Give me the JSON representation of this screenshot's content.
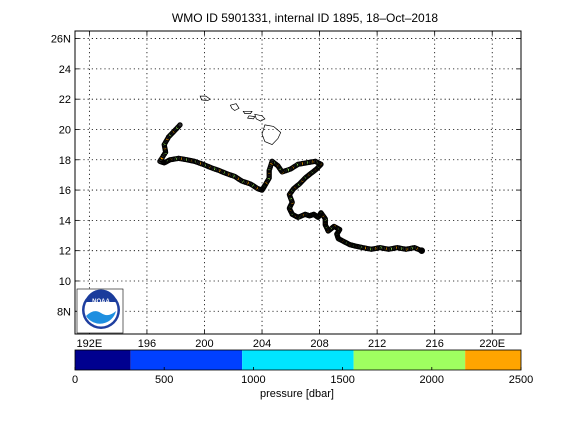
{
  "title": "WMO ID 5901331, internal ID 1895, 18–Oct–2018",
  "map": {
    "lon_range": [
      191,
      222
    ],
    "lat_range": [
      6.5,
      26.5
    ],
    "lon_ticks": [
      192,
      196,
      200,
      204,
      208,
      212,
      216,
      220
    ],
    "lon_tick_labels": [
      "192E",
      "196",
      "200",
      "204",
      "208",
      "212",
      "216",
      "220E"
    ],
    "lat_ticks": [
      8,
      10,
      12,
      14,
      16,
      18,
      20,
      22,
      24,
      26
    ],
    "lat_tick_labels": [
      "8N",
      "10",
      "12",
      "14",
      "16",
      "18",
      "20",
      "22",
      "24",
      "26N"
    ],
    "grid": "dotted",
    "logo_text": "NOAA"
  },
  "colorbar": {
    "label": "pressure [dbar]",
    "ticks": [
      "0",
      "500",
      "1000",
      "1500",
      "2000",
      "2500"
    ],
    "range": [
      0,
      2500
    ],
    "bins": [
      {
        "from": 0,
        "to": 312,
        "color": "#00008f"
      },
      {
        "from": 312,
        "to": 937,
        "color": "#0040ff"
      },
      {
        "from": 937,
        "to": 1562,
        "color": "#00e5ff"
      },
      {
        "from": 1562,
        "to": 2187,
        "color": "#9fff60"
      },
      {
        "from": 2187,
        "to": 2500,
        "color": "#ffa500"
      }
    ]
  },
  "chart_data": {
    "type": "scatter",
    "x_label": "longitude",
    "y_label": "latitude",
    "trajectory": [
      [
        215.1,
        12.0
      ],
      [
        214.6,
        12.2
      ],
      [
        214.0,
        12.1
      ],
      [
        213.4,
        12.2
      ],
      [
        212.8,
        12.1
      ],
      [
        212.2,
        12.2
      ],
      [
        211.6,
        12.1
      ],
      [
        211.0,
        12.2
      ],
      [
        210.5,
        12.3
      ],
      [
        210.1,
        12.4
      ],
      [
        209.7,
        12.6
      ],
      [
        209.3,
        12.8
      ],
      [
        209.2,
        13.1
      ],
      [
        209.4,
        13.4
      ],
      [
        209.0,
        13.6
      ],
      [
        208.6,
        13.3
      ],
      [
        208.4,
        13.7
      ],
      [
        208.4,
        14.1
      ],
      [
        208.1,
        14.5
      ],
      [
        207.9,
        14.2
      ],
      [
        207.6,
        14.4
      ],
      [
        207.3,
        14.3
      ],
      [
        207.0,
        14.4
      ],
      [
        206.5,
        14.2
      ],
      [
        206.1,
        14.4
      ],
      [
        205.9,
        14.8
      ],
      [
        206.1,
        15.2
      ],
      [
        205.9,
        15.7
      ],
      [
        206.2,
        16.1
      ],
      [
        206.6,
        16.4
      ],
      [
        207.0,
        16.8
      ],
      [
        207.4,
        17.1
      ],
      [
        207.8,
        17.4
      ],
      [
        208.1,
        17.7
      ],
      [
        207.7,
        17.9
      ],
      [
        207.1,
        17.8
      ],
      [
        206.5,
        17.7
      ],
      [
        206.0,
        17.4
      ],
      [
        205.4,
        17.2
      ],
      [
        205.1,
        17.6
      ],
      [
        204.7,
        17.9
      ],
      [
        204.5,
        17.3
      ],
      [
        204.5,
        16.8
      ],
      [
        204.2,
        16.3
      ],
      [
        204.0,
        16.0
      ],
      [
        203.7,
        16.1
      ],
      [
        203.2,
        16.4
      ],
      [
        202.6,
        16.6
      ],
      [
        202.1,
        16.9
      ],
      [
        201.5,
        17.1
      ],
      [
        201.0,
        17.3
      ],
      [
        200.4,
        17.5
      ],
      [
        199.9,
        17.7
      ],
      [
        199.3,
        17.9
      ],
      [
        198.8,
        18.0
      ],
      [
        198.2,
        18.1
      ],
      [
        197.6,
        18.0
      ],
      [
        197.2,
        17.8
      ],
      [
        196.9,
        17.9
      ],
      [
        197.3,
        18.5
      ],
      [
        197.2,
        19.0
      ],
      [
        197.5,
        19.5
      ],
      [
        197.9,
        19.9
      ],
      [
        198.3,
        20.3
      ]
    ],
    "final_position": [
      215.1,
      12.0
    ]
  }
}
